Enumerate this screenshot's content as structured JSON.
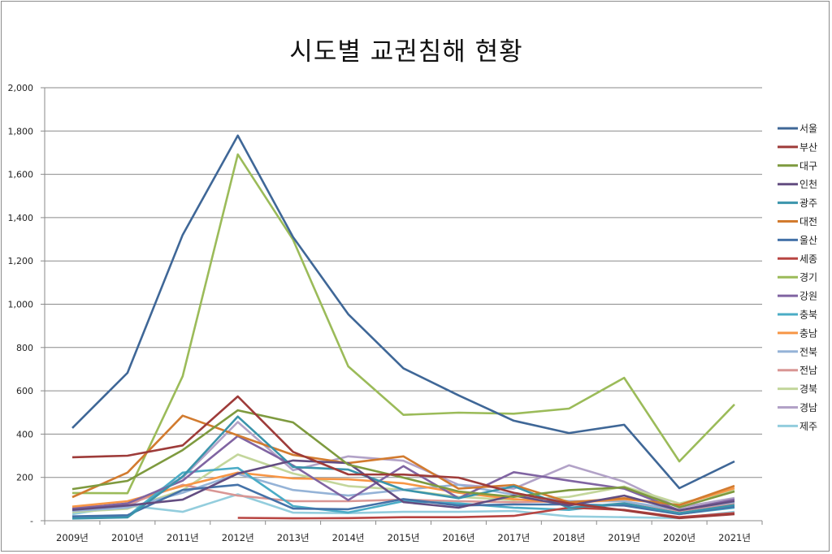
{
  "chart_data": {
    "type": "line",
    "title": "시도별 교권침해 현황",
    "xlabel": "",
    "ylabel": "",
    "ylim": [
      0,
      2000
    ],
    "yticks": [
      "-",
      "200",
      "400",
      "600",
      "800",
      "1,000",
      "1,200",
      "1,400",
      "1,600",
      "1,800",
      "2,000"
    ],
    "grid": true,
    "legend_position": "right",
    "categories": [
      "2009년",
      "2010년",
      "2011년",
      "2012년",
      "2013년",
      "2014년",
      "2015년",
      "2016년",
      "2017년",
      "2018년",
      "2019년",
      "2020년",
      "2021년"
    ],
    "series": [
      {
        "name": "서울",
        "color": "#3F6797",
        "values": [
          428,
          683,
          1320,
          1779,
          1310,
          954,
          704,
          579,
          462,
          405,
          443,
          150,
          274
        ]
      },
      {
        "name": "부산",
        "color": "#9E3B39",
        "values": [
          293,
          300,
          348,
          574,
          318,
          214,
          213,
          199,
          129,
          80,
          48,
          12,
          30
        ]
      },
      {
        "name": "대구",
        "color": "#7E9A3F",
        "values": [
          146,
          184,
          326,
          510,
          454,
          259,
          199,
          135,
          110,
          141,
          154,
          62,
          135
        ]
      },
      {
        "name": "인천",
        "color": "#634D81",
        "values": [
          50,
          70,
          97,
          218,
          278,
          266,
          86,
          60,
          116,
          70,
          116,
          48,
          90
        ]
      },
      {
        "name": "광주",
        "color": "#3A94AB",
        "values": [
          10,
          15,
          204,
          481,
          248,
          236,
          143,
          104,
          159,
          60,
          80,
          35,
          72
        ]
      },
      {
        "name": "대전",
        "color": "#D27B2F",
        "values": [
          109,
          222,
          485,
          394,
          304,
          266,
          297,
          148,
          165,
          85,
          104,
          72,
          161
        ]
      },
      {
        "name": "울산",
        "color": "#4472A8",
        "values": [
          20,
          25,
          142,
          166,
          56,
          53,
          100,
          70,
          75,
          75,
          70,
          30,
          65
        ]
      },
      {
        "name": "세종",
        "color": "#B84542",
        "values": [
          null,
          null,
          null,
          13,
          11,
          12,
          16,
          16,
          22,
          60,
          50,
          16,
          35
        ]
      },
      {
        "name": "경기",
        "color": "#9BBB59",
        "values": [
          128,
          127,
          667,
          1692,
          1298,
          713,
          489,
          499,
          494,
          518,
          660,
          274,
          537
        ]
      },
      {
        "name": "강원",
        "color": "#8064A2",
        "values": [
          55,
          80,
          185,
          391,
          255,
          95,
          252,
          104,
          224,
          185,
          148,
          48,
          98
        ]
      },
      {
        "name": "충북",
        "color": "#4BACC6",
        "values": [
          15,
          20,
          222,
          244,
          67,
          38,
          90,
          80,
          60,
          50,
          79,
          31,
          60
        ]
      },
      {
        "name": "충남",
        "color": "#F79646",
        "values": [
          65,
          90,
          160,
          222,
          195,
          191,
          173,
          129,
          100,
          80,
          100,
          72,
          150
        ]
      },
      {
        "name": "전북",
        "color": "#95B3D7",
        "values": [
          45,
          60,
          129,
          216,
          142,
          116,
          143,
          166,
          120,
          90,
          90,
          50,
          86
        ]
      },
      {
        "name": "전남",
        "color": "#D99694",
        "values": [
          60,
          75,
          166,
          116,
          90,
          90,
          97,
          90,
          85,
          90,
          90,
          45,
          80
        ]
      },
      {
        "name": "경북",
        "color": "#C3D69B",
        "values": [
          40,
          55,
          142,
          306,
          218,
          160,
          143,
          110,
          95,
          110,
          158,
          79,
          140
        ]
      },
      {
        "name": "경남",
        "color": "#B2A2C7",
        "values": [
          40,
          65,
          199,
          456,
          233,
          297,
          277,
          166,
          148,
          256,
          180,
          60,
          105
        ]
      },
      {
        "name": "제주",
        "color": "#93CDDD",
        "values": [
          30,
          70,
          41,
          122,
          37,
          35,
          41,
          41,
          45,
          20,
          16,
          12,
          41
        ]
      }
    ]
  }
}
